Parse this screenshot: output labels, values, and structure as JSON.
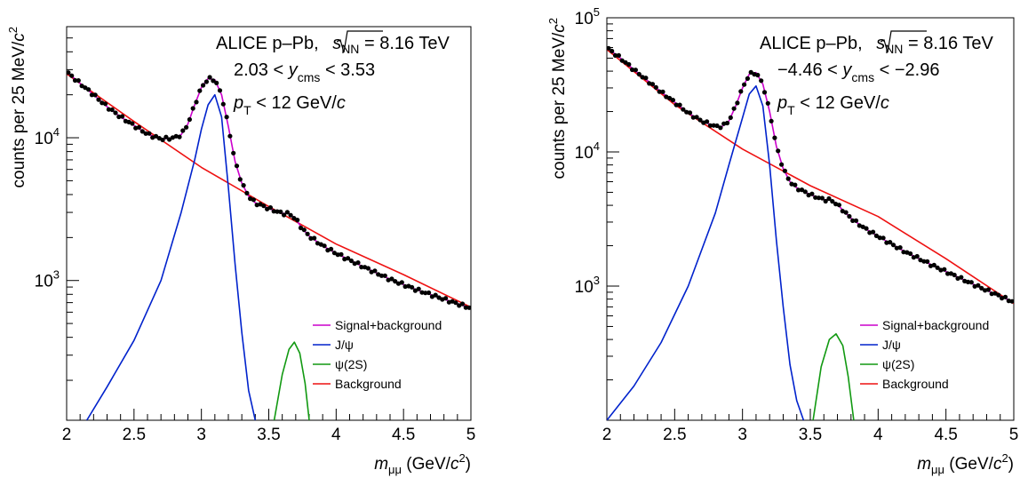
{
  "colors": {
    "signal_plus_background": "#cc00cc",
    "jpsi": "#0022cc",
    "psi2s": "#119911",
    "background": "#ee1111",
    "data_points": "#000000"
  },
  "chart_data": [
    {
      "type": "line",
      "panel": "left",
      "xlabel": "m_μμ (GeV/c²)",
      "ylabel": "counts per 25 MeV/c²",
      "x_ticks": [
        "2",
        "2.5",
        "3",
        "3.5",
        "4",
        "4.5",
        "5"
      ],
      "y_ticks": [
        {
          "label": "10",
          "exp": "3",
          "value": 1000
        },
        {
          "label": "10",
          "exp": "4",
          "value": 10000
        }
      ],
      "xlim": [
        2,
        5
      ],
      "ylim": [
        105,
        60000
      ],
      "y_scale": "log",
      "grid": false,
      "legend_position": "bottom-right",
      "annotations": {
        "line1_prefix": "ALICE p–Pb,",
        "line1_sqrt": "s",
        "line1_sub": "NN",
        "line1_suffix": " = 8.16 TeV",
        "line2_left": "2.03 < ",
        "line2_var": "y",
        "line2_sub": "cms",
        "line2_right": " < 3.53",
        "line3_var": "p",
        "line3_sub": "T",
        "line3_right": " < 12 GeV/",
        "line3_unit": "c"
      },
      "series": [
        {
          "name": "Signal+background",
          "key": "sig_bkg",
          "x": [
            2.0,
            2.1,
            2.2,
            2.3,
            2.4,
            2.5,
            2.6,
            2.7,
            2.8,
            2.85,
            2.9,
            2.95,
            3.0,
            3.05,
            3.1,
            3.15,
            3.2,
            3.25,
            3.3,
            3.35,
            3.4,
            3.5,
            3.6,
            3.65,
            3.7,
            3.75,
            3.8,
            3.9,
            4.0,
            4.2,
            4.4,
            4.6,
            4.8,
            5.0
          ],
          "y": [
            29000,
            24000,
            20000,
            16500,
            14000,
            12200,
            10600,
            9800,
            10000,
            10500,
            12500,
            17000,
            22500,
            26000,
            25500,
            20000,
            12000,
            6800,
            4800,
            3900,
            3500,
            3200,
            2950,
            2950,
            2700,
            2300,
            2050,
            1750,
            1550,
            1250,
            1020,
            860,
            740,
            640
          ]
        },
        {
          "name": "J/ψ",
          "key": "jpsi",
          "x": [
            2.15,
            2.3,
            2.5,
            2.7,
            2.85,
            2.95,
            3.0,
            3.05,
            3.1,
            3.15,
            3.2,
            3.25,
            3.3,
            3.35,
            3.4
          ],
          "y": [
            105,
            180,
            380,
            1000,
            3000,
            7000,
            11500,
            17000,
            20000,
            14000,
            4500,
            1300,
            430,
            170,
            105
          ]
        },
        {
          "name": "ψ(2S)",
          "key": "psi2s",
          "x": [
            3.54,
            3.6,
            3.65,
            3.69,
            3.73,
            3.77,
            3.8
          ],
          "y": [
            105,
            220,
            330,
            370,
            310,
            190,
            105
          ]
        },
        {
          "name": "Background",
          "key": "bkg",
          "x": [
            2.0,
            2.5,
            3.0,
            3.5,
            4.0,
            4.5,
            5.0
          ],
          "y": [
            28000,
            13000,
            6200,
            3300,
            1800,
            1100,
            650
          ]
        }
      ],
      "points": {
        "x": [
          2.0,
          2.1,
          2.2,
          2.3,
          2.4,
          2.5,
          2.6,
          2.7,
          2.8,
          2.85,
          2.9,
          2.95,
          3.0,
          3.05,
          3.1,
          3.15,
          3.2,
          3.25,
          3.3,
          3.35,
          3.4,
          3.5,
          3.6,
          3.65,
          3.7,
          3.75,
          3.8,
          3.9,
          4.0,
          4.2,
          4.4,
          4.6,
          4.8,
          5.0
        ],
        "y": [
          29000,
          24000,
          20000,
          16500,
          14000,
          12200,
          10600,
          9800,
          10000,
          10500,
          12500,
          17000,
          22500,
          26000,
          25500,
          20000,
          12000,
          6800,
          4800,
          3900,
          3500,
          3200,
          2950,
          2950,
          2700,
          2300,
          2050,
          1750,
          1550,
          1250,
          1020,
          860,
          740,
          640
        ]
      }
    },
    {
      "type": "line",
      "panel": "right",
      "xlabel": "m_μμ (GeV/c²)",
      "ylabel": "counts per 25 MeV/c²",
      "x_ticks": [
        "2",
        "2.5",
        "3",
        "3.5",
        "4",
        "4.5",
        "5"
      ],
      "y_ticks": [
        {
          "label": "10",
          "exp": "3",
          "value": 1000
        },
        {
          "label": "10",
          "exp": "4",
          "value": 10000
        },
        {
          "label": "10",
          "exp": "5",
          "value": 100000
        }
      ],
      "xlim": [
        2,
        5
      ],
      "ylim": [
        100,
        100000
      ],
      "y_scale": "log",
      "grid": false,
      "legend_position": "bottom-right",
      "annotations": {
        "line1_prefix": "ALICE p–Pb,",
        "line1_sqrt": "s",
        "line1_sub": "NN",
        "line1_suffix": " = 8.16 TeV",
        "line2_left": "−4.46 < ",
        "line2_var": "y",
        "line2_sub": "cms",
        "line2_right": " < −2.96",
        "line3_var": "p",
        "line3_sub": "T",
        "line3_right": " < 12 GeV/",
        "line3_unit": "c"
      },
      "series": [
        {
          "name": "Signal+background",
          "key": "sig_bkg",
          "x": [
            2.0,
            2.1,
            2.2,
            2.3,
            2.4,
            2.5,
            2.6,
            2.7,
            2.8,
            2.85,
            2.9,
            2.95,
            3.0,
            3.05,
            3.1,
            3.15,
            3.2,
            3.25,
            3.3,
            3.35,
            3.4,
            3.5,
            3.6,
            3.65,
            3.7,
            3.75,
            3.8,
            3.9,
            4.0,
            4.2,
            4.4,
            4.6,
            4.8,
            5.0
          ],
          "y": [
            60000,
            50000,
            41000,
            34000,
            28000,
            23500,
            19500,
            17000,
            15500,
            15500,
            17000,
            22000,
            30000,
            38000,
            39000,
            32000,
            20000,
            11000,
            7500,
            6000,
            5400,
            4800,
            4400,
            4400,
            4050,
            3600,
            3200,
            2700,
            2350,
            1800,
            1430,
            1150,
            930,
            760
          ]
        },
        {
          "name": "J/ψ",
          "key": "jpsi",
          "x": [
            2.0,
            2.2,
            2.4,
            2.6,
            2.8,
            2.9,
            3.0,
            3.05,
            3.1,
            3.15,
            3.2,
            3.25,
            3.3,
            3.35,
            3.4,
            3.45
          ],
          "y": [
            100,
            180,
            380,
            1000,
            3500,
            8000,
            18000,
            27000,
            31000,
            22000,
            8000,
            2200,
            700,
            260,
            140,
            100
          ]
        },
        {
          "name": "ψ(2S)",
          "key": "psi2s",
          "x": [
            3.52,
            3.58,
            3.64,
            3.69,
            3.74,
            3.78,
            3.82
          ],
          "y": [
            100,
            250,
            400,
            440,
            360,
            210,
            100
          ]
        },
        {
          "name": "Background",
          "key": "bkg",
          "x": [
            2.0,
            2.5,
            3.0,
            3.5,
            4.0,
            4.5,
            5.0
          ],
          "y": [
            58000,
            22500,
            10500,
            5600,
            3300,
            1600,
            740
          ]
        }
      ],
      "points": {
        "x": [
          2.0,
          2.1,
          2.2,
          2.3,
          2.4,
          2.5,
          2.6,
          2.7,
          2.8,
          2.85,
          2.9,
          2.95,
          3.0,
          3.05,
          3.1,
          3.15,
          3.2,
          3.25,
          3.3,
          3.35,
          3.4,
          3.5,
          3.6,
          3.65,
          3.7,
          3.75,
          3.8,
          3.9,
          4.0,
          4.2,
          4.4,
          4.6,
          4.8,
          5.0
        ],
        "y": [
          60000,
          50000,
          41000,
          34000,
          28000,
          23500,
          19500,
          17000,
          15500,
          15500,
          17000,
          22000,
          30000,
          38000,
          39000,
          32000,
          20000,
          11000,
          7500,
          6000,
          5400,
          4800,
          4400,
          4400,
          4050,
          3600,
          3200,
          2700,
          2350,
          1800,
          1430,
          1150,
          930,
          760
        ]
      }
    }
  ]
}
